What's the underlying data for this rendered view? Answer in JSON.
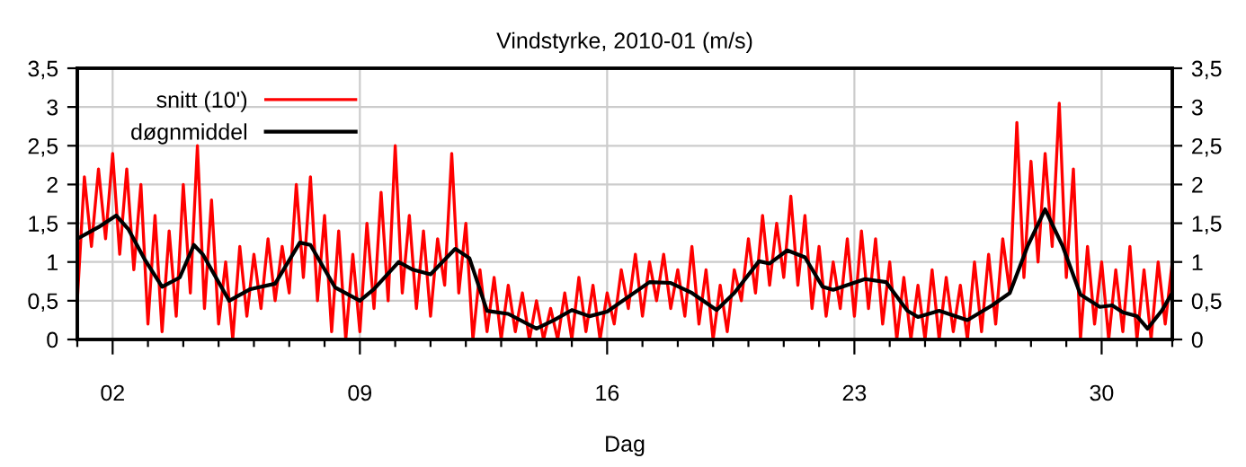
{
  "chart_data": {
    "type": "line",
    "title": "Vindstyrke, 2010-01 (m/s)",
    "xlabel": "Dag",
    "xlim": [
      1,
      32
    ],
    "xticks": [
      {
        "value": 1,
        "label": null
      },
      {
        "value": 2,
        "label": "02"
      },
      {
        "value": 3,
        "label": null
      },
      {
        "value": 4,
        "label": null
      },
      {
        "value": 5,
        "label": null
      },
      {
        "value": 6,
        "label": null
      },
      {
        "value": 7,
        "label": null
      },
      {
        "value": 8,
        "label": null
      },
      {
        "value": 9,
        "label": "09"
      },
      {
        "value": 10,
        "label": null
      },
      {
        "value": 11,
        "label": null
      },
      {
        "value": 12,
        "label": null
      },
      {
        "value": 13,
        "label": null
      },
      {
        "value": 14,
        "label": null
      },
      {
        "value": 15,
        "label": null
      },
      {
        "value": 16,
        "label": "16"
      },
      {
        "value": 17,
        "label": null
      },
      {
        "value": 18,
        "label": null
      },
      {
        "value": 19,
        "label": null
      },
      {
        "value": 20,
        "label": null
      },
      {
        "value": 21,
        "label": null
      },
      {
        "value": 22,
        "label": null
      },
      {
        "value": 23,
        "label": "23"
      },
      {
        "value": 24,
        "label": null
      },
      {
        "value": 25,
        "label": null
      },
      {
        "value": 26,
        "label": null
      },
      {
        "value": 27,
        "label": null
      },
      {
        "value": 28,
        "label": null
      },
      {
        "value": 29,
        "label": null
      },
      {
        "value": 30,
        "label": "30"
      },
      {
        "value": 31,
        "label": null
      },
      {
        "value": 32,
        "label": null
      }
    ],
    "ylim": [
      0,
      3.5
    ],
    "yticks": [
      0,
      {
        "value": 0.5,
        "label": "0,5"
      },
      1,
      {
        "value": 1.5,
        "label": "1,5"
      },
      2,
      {
        "value": 2.5,
        "label": "2,5"
      },
      3,
      {
        "value": 3.5,
        "label": "3,5"
      }
    ],
    "y2lim": [
      0,
      3.5
    ],
    "y2ticks": [
      0,
      {
        "value": 0.5,
        "label": "0,5"
      },
      1,
      {
        "value": 1.5,
        "label": "1,5"
      },
      2,
      {
        "value": 2.5,
        "label": "2,5"
      },
      3,
      {
        "value": 3.5,
        "label": "3,5"
      }
    ],
    "grid": true,
    "legend": "top left",
    "marker": "none",
    "line_style": "solid",
    "series": [
      {
        "name": "snitt (10')",
        "color": "#ff0000",
        "x": [
          1.0,
          1.2,
          1.4,
          1.6,
          1.8,
          2.0,
          2.2,
          2.4,
          2.6,
          2.8,
          3.0,
          3.2,
          3.4,
          3.6,
          3.8,
          4.0,
          4.2,
          4.4,
          4.6,
          4.8,
          5.0,
          5.2,
          5.4,
          5.6,
          5.8,
          6.0,
          6.2,
          6.4,
          6.6,
          6.8,
          7.0,
          7.2,
          7.4,
          7.6,
          7.8,
          8.0,
          8.2,
          8.4,
          8.6,
          8.8,
          9.0,
          9.2,
          9.4,
          9.6,
          9.8,
          10.0,
          10.2,
          10.4,
          10.6,
          10.8,
          11.0,
          11.2,
          11.4,
          11.6,
          11.8,
          12.0,
          12.2,
          12.4,
          12.6,
          12.8,
          13.0,
          13.2,
          13.4,
          13.6,
          13.8,
          14.0,
          14.2,
          14.4,
          14.6,
          14.8,
          15.0,
          15.2,
          15.4,
          15.6,
          15.8,
          16.0,
          16.2,
          16.4,
          16.6,
          16.8,
          17.0,
          17.2,
          17.4,
          17.6,
          17.8,
          18.0,
          18.2,
          18.4,
          18.6,
          18.8,
          19.0,
          19.2,
          19.4,
          19.6,
          19.8,
          20.0,
          20.2,
          20.4,
          20.6,
          20.8,
          21.0,
          21.2,
          21.4,
          21.6,
          21.8,
          22.0,
          22.2,
          22.4,
          22.6,
          22.8,
          23.0,
          23.2,
          23.4,
          23.6,
          23.8,
          24.0,
          24.2,
          24.4,
          24.6,
          24.8,
          25.0,
          25.2,
          25.4,
          25.6,
          25.8,
          26.0,
          26.2,
          26.4,
          26.6,
          26.8,
          27.0,
          27.2,
          27.4,
          27.6,
          27.8,
          28.0,
          28.2,
          28.4,
          28.6,
          28.8,
          29.0,
          29.2,
          29.4,
          29.6,
          29.8,
          30.0,
          30.2,
          30.4,
          30.6,
          30.8,
          31.0,
          31.2,
          31.4,
          31.6,
          31.8,
          32.0
        ],
        "values": [
          0.5,
          2.1,
          1.2,
          2.2,
          1.3,
          2.4,
          1.1,
          2.2,
          0.9,
          2.0,
          0.2,
          1.6,
          0.1,
          1.4,
          0.3,
          2.0,
          0.6,
          2.5,
          0.4,
          1.8,
          0.2,
          1.0,
          0.0,
          1.2,
          0.3,
          1.1,
          0.4,
          1.3,
          0.5,
          1.2,
          0.6,
          2.0,
          0.8,
          2.1,
          0.5,
          1.6,
          0.1,
          1.4,
          0.0,
          1.1,
          0.1,
          1.5,
          0.4,
          1.9,
          0.5,
          2.5,
          0.6,
          1.6,
          0.4,
          1.4,
          0.3,
          1.3,
          0.7,
          2.4,
          0.6,
          1.5,
          0.0,
          0.9,
          0.1,
          0.8,
          0.0,
          0.7,
          0.1,
          0.6,
          0.0,
          0.5,
          0.0,
          0.4,
          0.0,
          0.6,
          0.0,
          0.8,
          0.1,
          0.7,
          0.0,
          0.6,
          0.2,
          0.9,
          0.4,
          1.1,
          0.3,
          1.0,
          0.5,
          1.1,
          0.4,
          0.9,
          0.3,
          1.2,
          0.2,
          0.9,
          0.0,
          0.7,
          0.1,
          0.9,
          0.5,
          1.3,
          0.6,
          1.6,
          0.7,
          1.5,
          0.8,
          1.85,
          0.7,
          1.6,
          0.4,
          1.2,
          0.3,
          1.0,
          0.4,
          1.3,
          0.3,
          1.4,
          0.4,
          1.3,
          0.2,
          1.0,
          0.0,
          0.8,
          0.0,
          0.7,
          0.0,
          0.9,
          0.0,
          0.8,
          0.1,
          0.7,
          0.0,
          1.0,
          0.1,
          1.1,
          0.2,
          1.3,
          0.6,
          2.8,
          0.8,
          2.3,
          1.0,
          2.4,
          1.2,
          3.05,
          0.8,
          2.2,
          0.0,
          1.2,
          0.2,
          1.0,
          0.0,
          0.9,
          0.1,
          1.2,
          0.0,
          0.9,
          0.0,
          1.0,
          0.2,
          1.0
        ]
      },
      {
        "name": "døgnmiddel",
        "color": "#000000",
        "x": [
          1.0,
          1.6,
          2.1,
          2.45,
          2.9,
          3.4,
          3.9,
          4.3,
          4.55,
          5.3,
          5.9,
          6.6,
          7.3,
          7.6,
          8.3,
          9.0,
          9.4,
          10.1,
          10.5,
          11.0,
          11.7,
          12.1,
          12.6,
          13.2,
          14.0,
          14.5,
          15.0,
          15.5,
          16.0,
          17.2,
          17.8,
          18.4,
          19.1,
          19.6,
          20.3,
          20.6,
          21.1,
          21.6,
          22.1,
          22.4,
          23.3,
          23.9,
          24.5,
          24.8,
          25.4,
          26.2,
          26.9,
          27.4,
          27.9,
          28.4,
          28.9,
          29.4,
          29.95,
          30.3,
          30.6,
          31.0,
          31.3,
          31.7,
          32.0
        ],
        "values": [
          1.3,
          1.45,
          1.6,
          1.42,
          1.04,
          0.68,
          0.8,
          1.22,
          1.1,
          0.5,
          0.65,
          0.72,
          1.25,
          1.22,
          0.67,
          0.5,
          0.65,
          1.0,
          0.9,
          0.84,
          1.17,
          1.05,
          0.37,
          0.33,
          0.14,
          0.25,
          0.38,
          0.3,
          0.36,
          0.74,
          0.73,
          0.6,
          0.38,
          0.6,
          1.01,
          0.98,
          1.15,
          1.06,
          0.68,
          0.64,
          0.78,
          0.74,
          0.37,
          0.29,
          0.37,
          0.25,
          0.44,
          0.6,
          1.2,
          1.68,
          1.2,
          0.58,
          0.42,
          0.44,
          0.35,
          0.3,
          0.14,
          0.37,
          0.6
        ]
      }
    ]
  }
}
